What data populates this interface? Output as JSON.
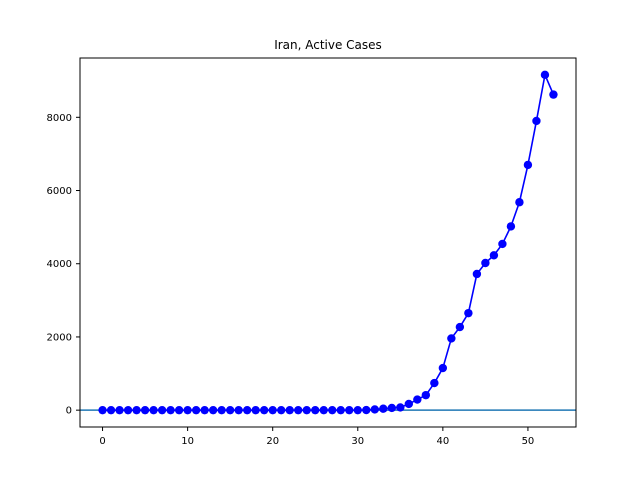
{
  "chart_data": {
    "type": "line",
    "title": "Iran, Active Cases",
    "xlabel": "",
    "ylabel": "",
    "xlim": [
      -2.65,
      55.65
    ],
    "ylim": [
      -460,
      9620
    ],
    "xticks": [
      0,
      10,
      20,
      30,
      40,
      50
    ],
    "yticks": [
      0,
      2000,
      4000,
      6000,
      8000
    ],
    "grid": false,
    "legend": "none",
    "hline": 0,
    "series": [
      {
        "color": "#0000ff",
        "marker": "circle",
        "x": [
          0,
          1,
          2,
          3,
          4,
          5,
          6,
          7,
          8,
          9,
          10,
          11,
          12,
          13,
          14,
          15,
          16,
          17,
          18,
          19,
          20,
          21,
          22,
          23,
          24,
          25,
          26,
          27,
          28,
          29,
          30,
          31,
          32,
          33,
          34,
          35,
          36,
          37,
          38,
          39,
          40,
          41,
          42,
          43,
          44,
          45,
          46,
          47,
          48,
          49,
          50,
          51,
          52,
          53
        ],
        "y": [
          0,
          0,
          0,
          0,
          0,
          0,
          0,
          0,
          0,
          0,
          0,
          0,
          0,
          0,
          0,
          0,
          0,
          0,
          0,
          0,
          0,
          0,
          0,
          0,
          0,
          0,
          0,
          0,
          0,
          0,
          0,
          2,
          20,
          40,
          60,
          75,
          170,
          290,
          410,
          740,
          1150,
          1960,
          2270,
          2650,
          3720,
          4020,
          4230,
          4540,
          5020,
          5680,
          6700,
          7900,
          9160,
          8620
        ]
      }
    ]
  },
  "colors": {
    "series": "#0000ff",
    "hline": "#1f77b4",
    "axes": "#000000"
  }
}
